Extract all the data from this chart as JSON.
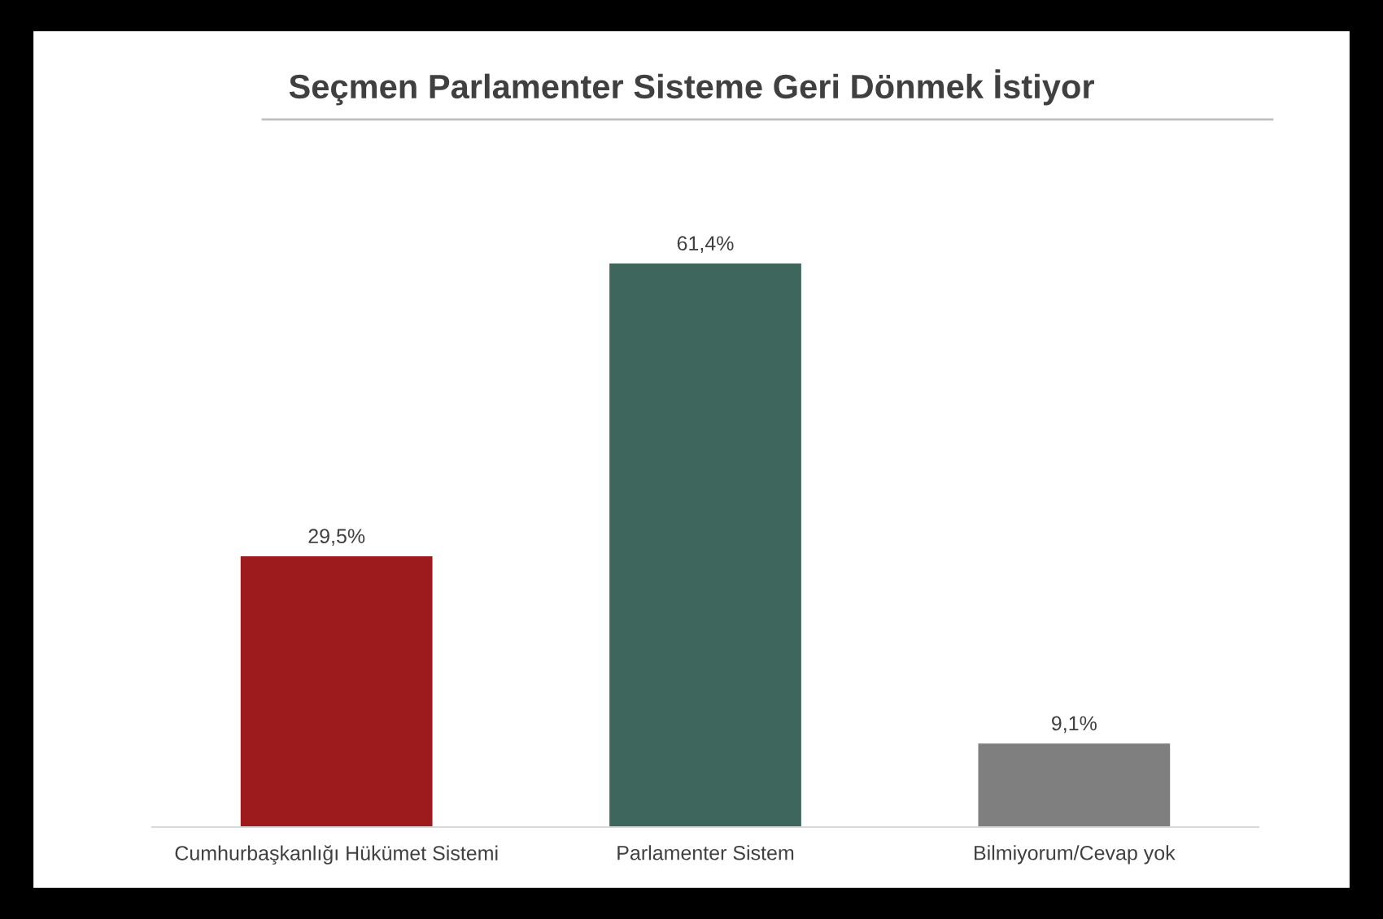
{
  "chart_data": {
    "type": "bar",
    "title": "Seçmen Parlamenter Sisteme Geri Dönmek İstiyor",
    "categories": [
      "Cumhurbaşkanlığı Hükümet Sistemi",
      "Parlamenter Sistem",
      "Bilmiyorum/Cevap yok"
    ],
    "values": [
      29.5,
      61.4,
      9.1
    ],
    "colors": [
      "#9e1b1d",
      "#3f665c",
      "#7f7f7f"
    ],
    "value_labels": [
      "29,5%",
      "61,4%",
      "9,1%"
    ],
    "grid": false,
    "legend": false
  }
}
